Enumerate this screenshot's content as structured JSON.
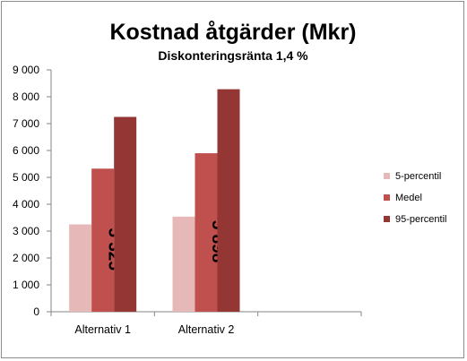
{
  "chart_data": {
    "type": "bar",
    "title": "Kostnad åtgärder (Mkr)",
    "subtitle": "Diskonteringsränta 1,4 %",
    "categories": [
      "Alternativ 1",
      "Alternativ 2"
    ],
    "series": [
      {
        "name": "5-percentil",
        "values": [
          3250,
          3540
        ],
        "color": "#e6b9b8"
      },
      {
        "name": "Medel",
        "values": [
          5325,
          5898
        ],
        "color": "#c0504d"
      },
      {
        "name": "95-percentil",
        "values": [
          7250,
          8280
        ],
        "color": "#943634"
      }
    ],
    "data_labels": {
      "series": "Medel",
      "texts": [
        "5 325",
        "5 898"
      ]
    },
    "yticks": [
      "0",
      "1 000",
      "2 000",
      "3 000",
      "4 000",
      "5 000",
      "6 000",
      "7 000",
      "8 000",
      "9 000"
    ],
    "ylim": [
      0,
      9000
    ],
    "grid": false,
    "legend": "right"
  }
}
